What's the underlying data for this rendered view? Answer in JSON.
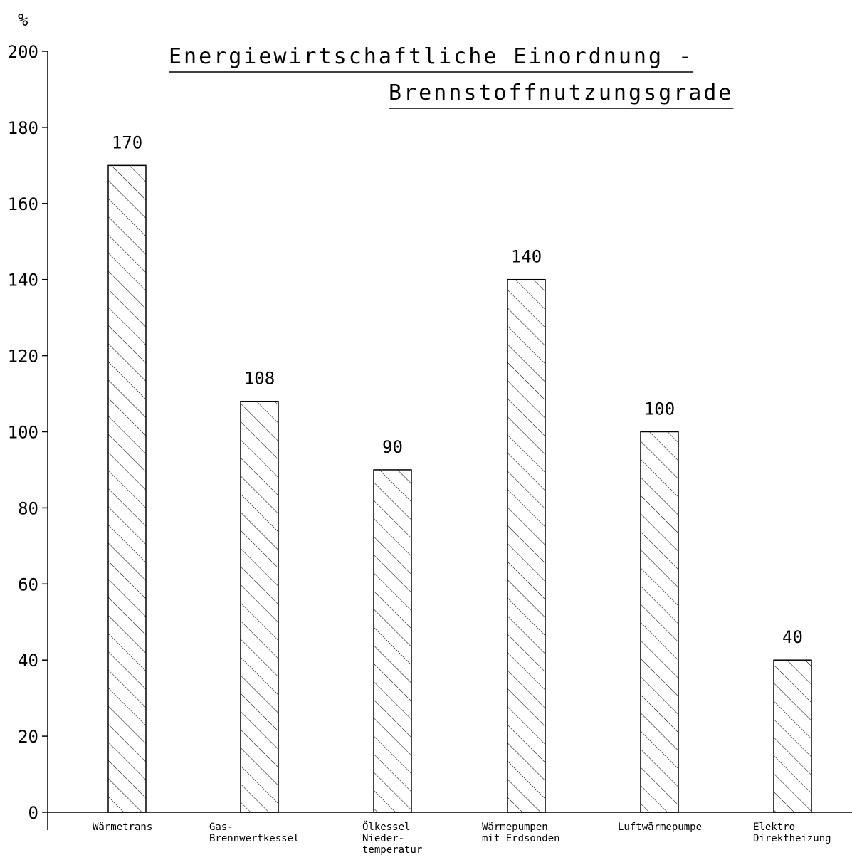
{
  "chart_data": {
    "type": "bar",
    "title_lines": [
      "Energiewirtschaftliche Einordnung -",
      "Brennstoffnutzungsgrade"
    ],
    "ylabel": "%",
    "xlabel": "",
    "ylim": [
      0,
      200
    ],
    "y_ticks": [
      0,
      20,
      40,
      60,
      80,
      100,
      120,
      140,
      160,
      180,
      200
    ],
    "categories": [
      [
        "Wärmetrans"
      ],
      [
        "Gas-",
        "Brennwertkessel"
      ],
      [
        "Ölkessel",
        "Nieder-",
        "temperatur"
      ],
      [
        "Wärmepumpen",
        "mit Erdsonden"
      ],
      [
        "Luftwärmepumpe"
      ],
      [
        "Elektro",
        "Direktheizung"
      ]
    ],
    "values": [
      170,
      108,
      90,
      140,
      100,
      40
    ],
    "value_labels": [
      "170",
      "108",
      "90",
      "140",
      "100",
      "40"
    ],
    "grid": false,
    "bar_fill": "hatched",
    "colors": {
      "line": "#000000",
      "background": "#ffffff"
    }
  }
}
